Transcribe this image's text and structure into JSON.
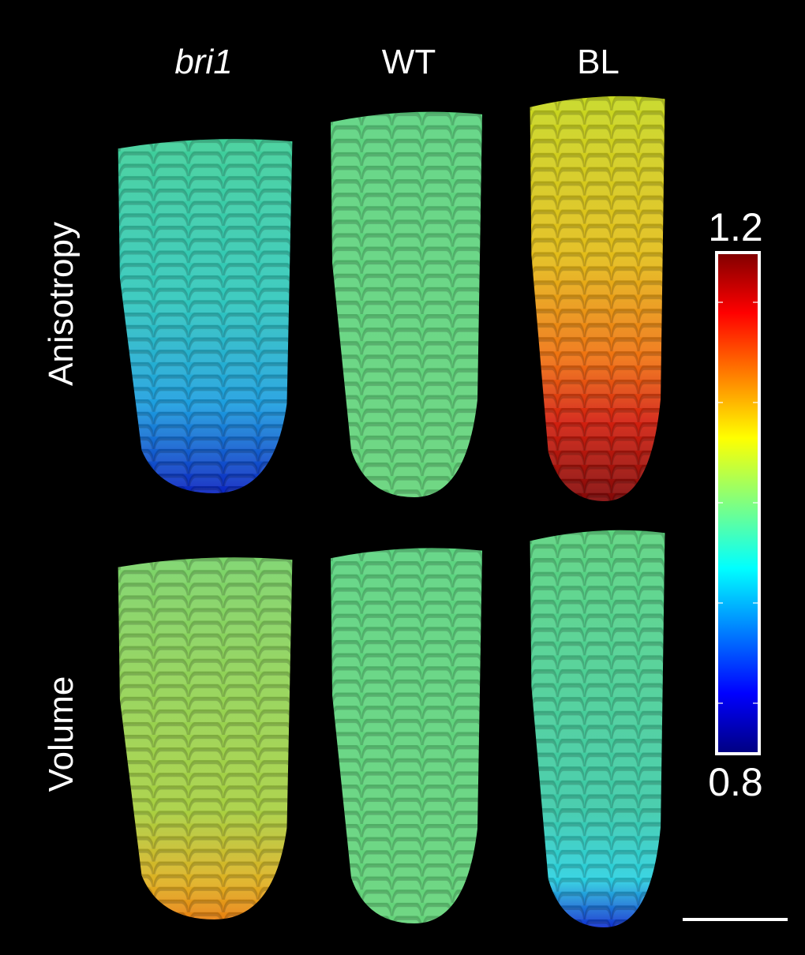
{
  "columns": [
    "bri1",
    "WT",
    "BL"
  ],
  "rows": [
    "Anisotropy",
    "Volume"
  ],
  "colorbar": {
    "max": 1.2,
    "min": 0.8
  }
}
